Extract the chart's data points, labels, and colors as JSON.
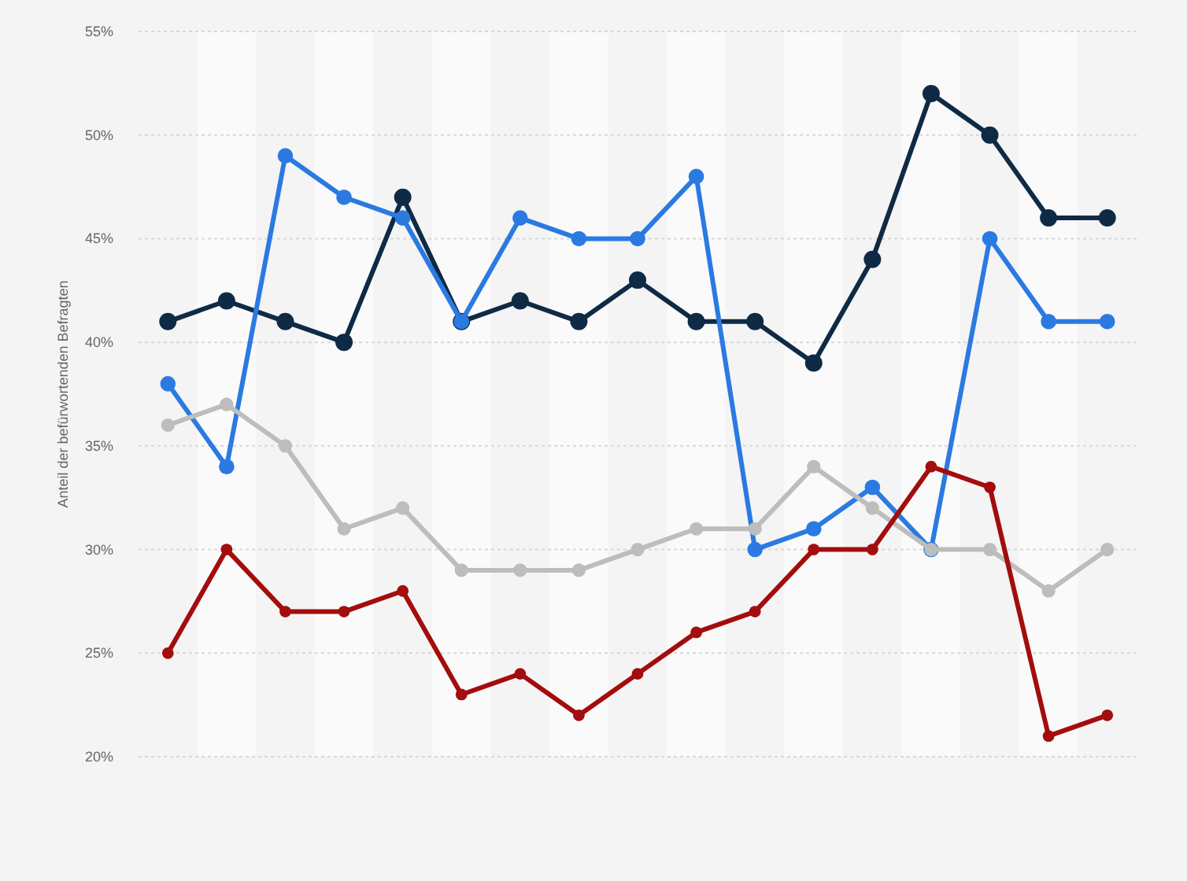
{
  "chart_data": {
    "type": "line",
    "ylabel": "Anteil der befürwortenden Befragten",
    "categories": [
      null,
      null,
      null,
      null,
      null,
      null,
      null,
      null,
      null,
      null,
      null,
      null,
      null,
      null,
      null,
      null,
      null
    ],
    "series": [
      {
        "color": "#0f2a44",
        "values": [
          41,
          42,
          41,
          40,
          47,
          41,
          42,
          41,
          43,
          41,
          41,
          39,
          44,
          52,
          50,
          46,
          46
        ]
      },
      {
        "color": "#2a7ae2",
        "values": [
          38,
          34,
          49,
          47,
          46,
          41,
          46,
          45,
          45,
          48,
          30,
          31,
          33,
          30,
          45,
          41,
          41
        ]
      },
      {
        "color": "#bdbdbd",
        "values": [
          36,
          37,
          35,
          31,
          32,
          29,
          29,
          29,
          30,
          31,
          31,
          34,
          32,
          30,
          30,
          28,
          30
        ]
      },
      {
        "color": "#a30d0d",
        "values": [
          25,
          30,
          27,
          27,
          28,
          23,
          24,
          22,
          24,
          26,
          27,
          30,
          30,
          34,
          33,
          21,
          22
        ]
      }
    ],
    "ylim": [
      20,
      55
    ],
    "yticks": [
      {
        "value": 20,
        "label": "20%"
      },
      {
        "value": 25,
        "label": "25%"
      },
      {
        "value": 30,
        "label": "30%"
      },
      {
        "value": 35,
        "label": "35%"
      },
      {
        "value": 40,
        "label": "40%"
      },
      {
        "value": 45,
        "label": "45%"
      },
      {
        "value": 50,
        "label": "50%"
      },
      {
        "value": 55,
        "label": "55%"
      }
    ],
    "grid": "y",
    "marker": "circle",
    "line_style": "solid",
    "tick_labels": "y"
  }
}
